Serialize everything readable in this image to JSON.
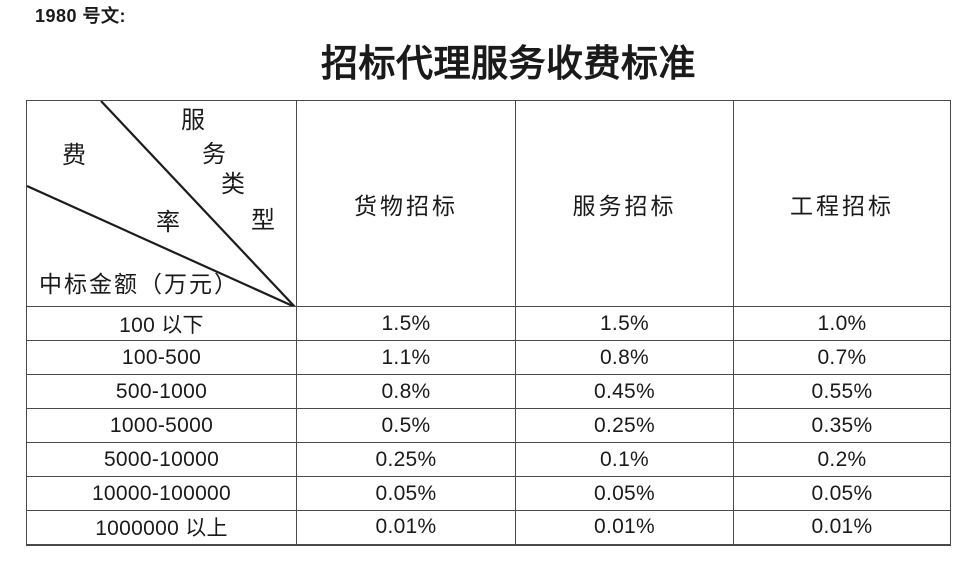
{
  "doc_label": "1980 号文:",
  "title": "招标代理服务收费标准",
  "table": {
    "corner": {
      "type_label_chars": [
        "服",
        "务",
        "类",
        "型"
      ],
      "fee_label_chars": [
        "费",
        "率"
      ],
      "row_axis_label": "中标金额（万元）"
    },
    "columns": [
      "货物招标",
      "服务招标",
      "工程招标"
    ],
    "rows": [
      {
        "range": "100 以下",
        "values": [
          "1.5%",
          "1.5%",
          "1.0%"
        ]
      },
      {
        "range": "100-500",
        "values": [
          "1.1%",
          "0.8%",
          "0.7%"
        ]
      },
      {
        "range": "500-1000",
        "values": [
          "0.8%",
          "0.45%",
          "0.55%"
        ]
      },
      {
        "range": "1000-5000",
        "values": [
          "0.5%",
          "0.25%",
          "0.35%"
        ]
      },
      {
        "range": "5000-10000",
        "values": [
          "0.25%",
          "0.1%",
          "0.2%"
        ]
      },
      {
        "range": "10000-100000",
        "values": [
          "0.05%",
          "0.05%",
          "0.05%"
        ]
      },
      {
        "range": "1000000 以上",
        "values": [
          "0.01%",
          "0.01%",
          "0.01%"
        ]
      }
    ]
  },
  "colors": {
    "text": "#1a1a1a",
    "border": "#4a4a4a",
    "diagonal_line": "#1c1c1c"
  }
}
